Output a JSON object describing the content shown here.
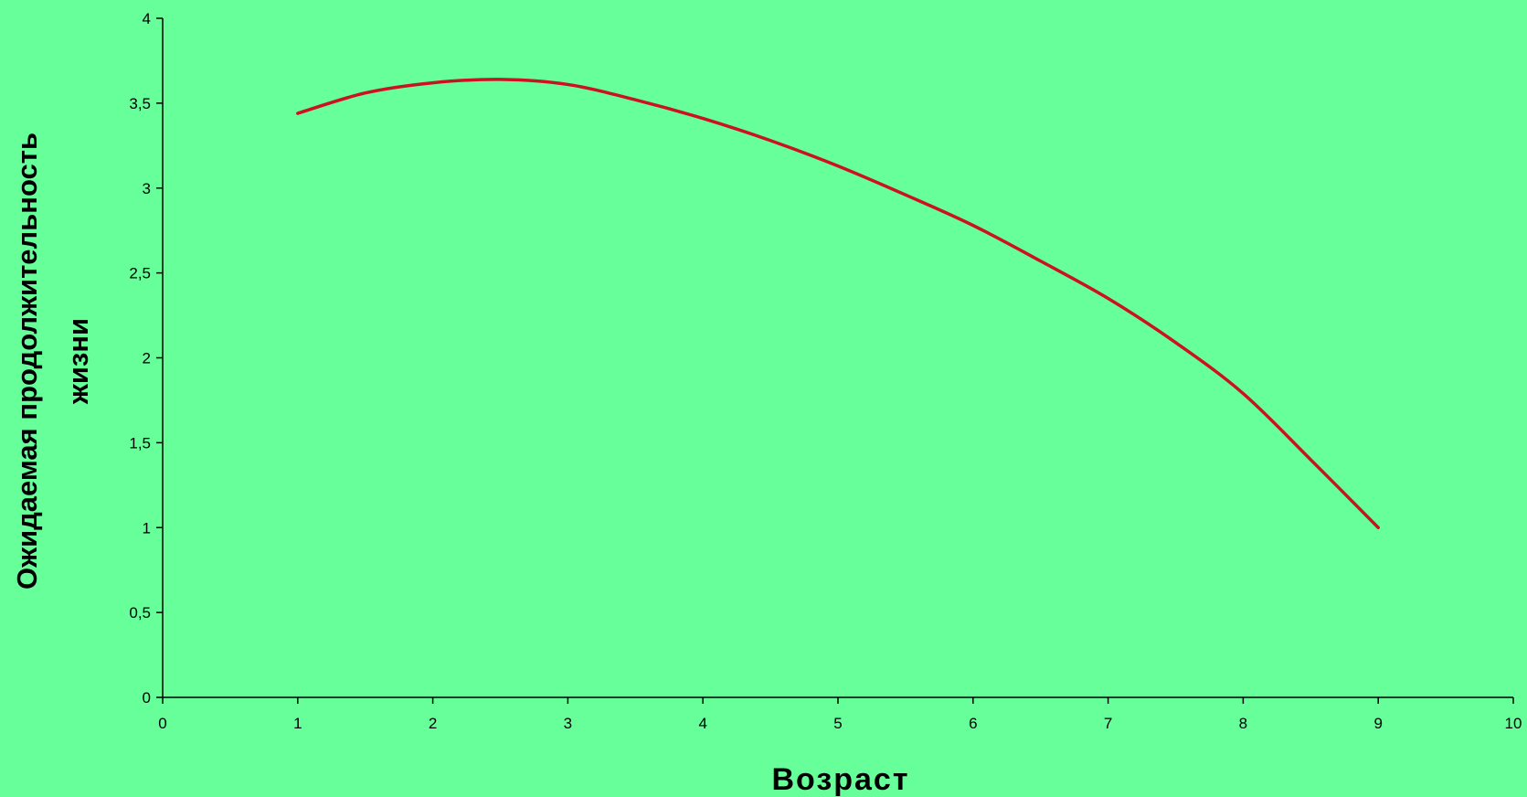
{
  "colors": {
    "background": "#66ff99",
    "series_line": "#cc1122",
    "axis": "#000000"
  },
  "chart_data": {
    "type": "line",
    "title": "",
    "xlabel": "Возраст",
    "ylabel_lines": [
      "Ожидаемая продолжительность",
      "жизни"
    ],
    "xlim": [
      0,
      10
    ],
    "ylim": [
      0,
      4
    ],
    "x_ticks": [
      0,
      1,
      2,
      3,
      4,
      5,
      6,
      7,
      8,
      9,
      10
    ],
    "x_tick_labels": [
      "0",
      "1",
      "2",
      "3",
      "4",
      "5",
      "6",
      "7",
      "8",
      "9",
      "10"
    ],
    "y_ticks": [
      0,
      0.5,
      1,
      1.5,
      2,
      2.5,
      3,
      3.5,
      4
    ],
    "y_tick_labels": [
      "0",
      "0,5",
      "1",
      "1,5",
      "2",
      "2,5",
      "3",
      "3,5",
      "4"
    ],
    "grid": false,
    "legend": "none",
    "series": [
      {
        "x": [
          1,
          1.5,
          2,
          2.5,
          3,
          3.5,
          4,
          4.5,
          5,
          5.5,
          6,
          6.5,
          7,
          7.5,
          8,
          8.5,
          9
        ],
        "values": [
          3.44,
          3.56,
          3.62,
          3.64,
          3.61,
          3.52,
          3.41,
          3.28,
          3.13,
          2.96,
          2.78,
          2.57,
          2.35,
          2.09,
          1.79,
          1.4,
          1.0
        ]
      }
    ]
  }
}
